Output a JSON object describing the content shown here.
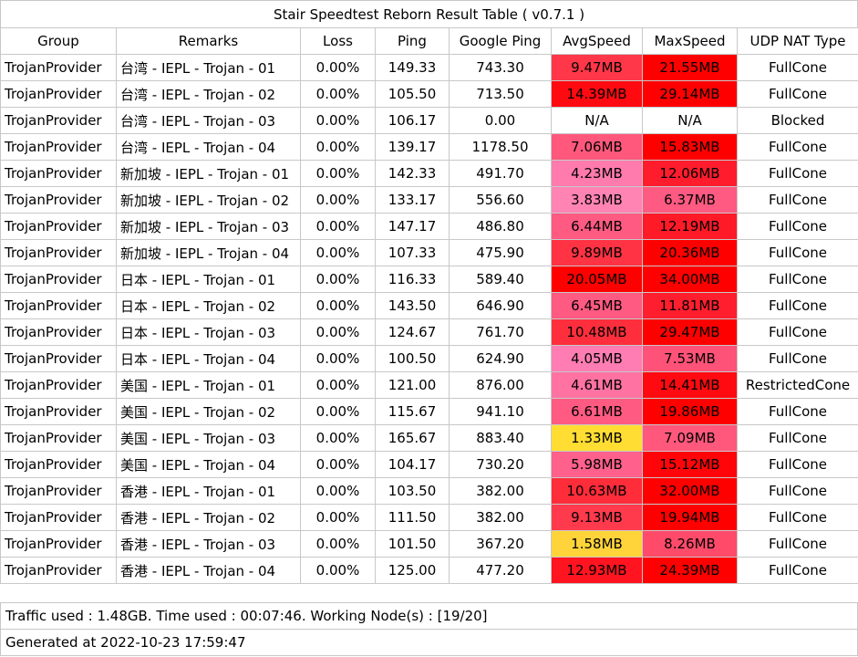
{
  "title": "Stair Speedtest Reborn Result Table ( v0.7.1 )",
  "headers": [
    "Group",
    "Remarks",
    "Loss",
    "Ping",
    "Google Ping",
    "AvgSpeed",
    "MaxSpeed",
    "UDP NAT Type"
  ],
  "rows": [
    {
      "group": "TrojanProvider",
      "remarks": "台湾 - IEPL - Trojan - 01",
      "loss": "0.00%",
      "ping": "149.33",
      "gping": "743.30",
      "avg": "9.47MB",
      "avg_color": "#ff3748",
      "max": "21.55MB",
      "max_color": "#ff0000",
      "nat": "FullCone"
    },
    {
      "group": "TrojanProvider",
      "remarks": "台湾 - IEPL - Trojan - 02",
      "loss": "0.00%",
      "ping": "105.50",
      "gping": "713.50",
      "avg": "14.39MB",
      "avg_color": "#ff0a10",
      "max": "29.14MB",
      "max_color": "#ff0000",
      "nat": "FullCone"
    },
    {
      "group": "TrojanProvider",
      "remarks": "台湾 - IEPL - Trojan - 03",
      "loss": "0.00%",
      "ping": "106.17",
      "gping": "0.00",
      "avg": "N/A",
      "avg_color": "#ffffff",
      "max": "N/A",
      "max_color": "#ffffff",
      "nat": "Blocked"
    },
    {
      "group": "TrojanProvider",
      "remarks": "台湾 - IEPL - Trojan - 04",
      "loss": "0.00%",
      "ping": "139.17",
      "gping": "1178.50",
      "avg": "7.06MB",
      "avg_color": "#ff587c",
      "max": "15.83MB",
      "max_color": "#ff0000",
      "nat": "FullCone"
    },
    {
      "group": "TrojanProvider",
      "remarks": "新加坡 - IEPL - Trojan - 01",
      "loss": "0.00%",
      "ping": "142.33",
      "gping": "491.70",
      "avg": "4.23MB",
      "avg_color": "#ff7aad",
      "max": "12.06MB",
      "max_color": "#ff1c2c",
      "nat": "FullCone"
    },
    {
      "group": "TrojanProvider",
      "remarks": "新加坡 - IEPL - Trojan - 02",
      "loss": "0.00%",
      "ping": "133.17",
      "gping": "556.60",
      "avg": "3.83MB",
      "avg_color": "#ff84b4",
      "max": "6.37MB",
      "max_color": "#ff5a82",
      "nat": "FullCone"
    },
    {
      "group": "TrojanProvider",
      "remarks": "新加坡 - IEPL - Trojan - 03",
      "loss": "0.00%",
      "ping": "147.17",
      "gping": "486.80",
      "avg": "6.44MB",
      "avg_color": "#ff5a82",
      "max": "12.19MB",
      "max_color": "#ff1a28",
      "nat": "FullCone"
    },
    {
      "group": "TrojanProvider",
      "remarks": "新加坡 - IEPL - Trojan - 04",
      "loss": "0.00%",
      "ping": "107.33",
      "gping": "475.90",
      "avg": "9.89MB",
      "avg_color": "#ff3344",
      "max": "20.36MB",
      "max_color": "#ff0000",
      "nat": "FullCone"
    },
    {
      "group": "TrojanProvider",
      "remarks": "日本 - IEPL - Trojan - 01",
      "loss": "0.00%",
      "ping": "116.33",
      "gping": "589.40",
      "avg": "20.05MB",
      "avg_color": "#ff0000",
      "max": "34.00MB",
      "max_color": "#ff0000",
      "nat": "FullCone"
    },
    {
      "group": "TrojanProvider",
      "remarks": "日本 - IEPL - Trojan - 02",
      "loss": "0.00%",
      "ping": "143.50",
      "gping": "646.90",
      "avg": "6.45MB",
      "avg_color": "#ff5a82",
      "max": "11.81MB",
      "max_color": "#ff1e2e",
      "nat": "FullCone"
    },
    {
      "group": "TrojanProvider",
      "remarks": "日本 - IEPL - Trojan - 03",
      "loss": "0.00%",
      "ping": "124.67",
      "gping": "761.70",
      "avg": "10.48MB",
      "avg_color": "#ff2e3c",
      "max": "29.47MB",
      "max_color": "#ff0000",
      "nat": "FullCone"
    },
    {
      "group": "TrojanProvider",
      "remarks": "日本 - IEPL - Trojan - 04",
      "loss": "0.00%",
      "ping": "100.50",
      "gping": "624.90",
      "avg": "4.05MB",
      "avg_color": "#ff7db2",
      "max": "7.53MB",
      "max_color": "#ff5278",
      "nat": "FullCone"
    },
    {
      "group": "TrojanProvider",
      "remarks": "美国 - IEPL - Trojan - 01",
      "loss": "0.00%",
      "ping": "121.00",
      "gping": "876.00",
      "avg": "4.61MB",
      "avg_color": "#ff72a2",
      "max": "14.41MB",
      "max_color": "#ff0a10",
      "nat": "RestrictedCone"
    },
    {
      "group": "TrojanProvider",
      "remarks": "美国 - IEPL - Trojan - 02",
      "loss": "0.00%",
      "ping": "115.67",
      "gping": "941.10",
      "avg": "6.61MB",
      "avg_color": "#ff5a82",
      "max": "19.86MB",
      "max_color": "#ff0000",
      "nat": "FullCone"
    },
    {
      "group": "TrojanProvider",
      "remarks": "美国 - IEPL - Trojan - 03",
      "loss": "0.00%",
      "ping": "165.67",
      "gping": "883.40",
      "avg": "1.33MB",
      "avg_color": "#ffdd33",
      "max": "7.09MB",
      "max_color": "#ff587c",
      "nat": "FullCone"
    },
    {
      "group": "TrojanProvider",
      "remarks": "美国 - IEPL - Trojan - 04",
      "loss": "0.00%",
      "ping": "104.17",
      "gping": "730.20",
      "avg": "5.98MB",
      "avg_color": "#ff608c",
      "max": "15.12MB",
      "max_color": "#ff0408",
      "nat": "FullCone"
    },
    {
      "group": "TrojanProvider",
      "remarks": "香港 - IEPL - Trojan - 01",
      "loss": "0.00%",
      "ping": "103.50",
      "gping": "382.00",
      "avg": "10.63MB",
      "avg_color": "#ff2c3a",
      "max": "32.00MB",
      "max_color": "#ff0000",
      "nat": "FullCone"
    },
    {
      "group": "TrojanProvider",
      "remarks": "香港 - IEPL - Trojan - 02",
      "loss": "0.00%",
      "ping": "111.50",
      "gping": "382.00",
      "avg": "9.13MB",
      "avg_color": "#ff3a4c",
      "max": "19.94MB",
      "max_color": "#ff0000",
      "nat": "FullCone"
    },
    {
      "group": "TrojanProvider",
      "remarks": "香港 - IEPL - Trojan - 03",
      "loss": "0.00%",
      "ping": "101.50",
      "gping": "367.20",
      "avg": "1.58MB",
      "avg_color": "#ffd43a",
      "max": "8.26MB",
      "max_color": "#ff4a6a",
      "nat": "FullCone"
    },
    {
      "group": "TrojanProvider",
      "remarks": "香港 - IEPL - Trojan - 04",
      "loss": "0.00%",
      "ping": "125.00",
      "gping": "477.20",
      "avg": "12.93MB",
      "avg_color": "#ff1420",
      "max": "24.39MB",
      "max_color": "#ff0000",
      "nat": "FullCone"
    }
  ],
  "footer": {
    "traffic": "Traffic used : 1.48GB. Time used : 00:07:46. Working Node(s) : [19/20]",
    "generated": "Generated at 2022-10-23 17:59:47"
  }
}
